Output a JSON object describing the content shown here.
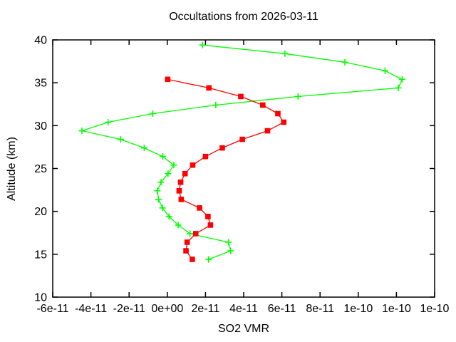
{
  "chart_data": {
    "type": "line",
    "title": "Occultations from 2026-03-11",
    "xlabel": "SO2 VMR",
    "ylabel": "Altitude (km)",
    "xlim": [
      -6e-11,
      1.4e-10
    ],
    "ylim": [
      10,
      40
    ],
    "grid": false,
    "legend": "none",
    "background_color": "#ffffff",
    "border_color": "#000000",
    "x_ticks": [
      -6e-11,
      -4e-11,
      -2e-11,
      0,
      2e-11,
      4e-11,
      6e-11,
      8e-11,
      1e-10,
      1.2e-10,
      1.4e-10
    ],
    "x_tick_labels": [
      "-6e-11",
      "-4e-11",
      "-2e-11",
      "0e+00",
      "2e-11",
      "4e-11",
      "6e-11",
      "8e-11",
      "1e-10",
      "1e-10",
      "1e-10"
    ],
    "y_ticks": [
      10,
      15,
      20,
      25,
      30,
      35,
      40
    ],
    "y_tick_labels": [
      "10",
      "15",
      "20",
      "25",
      "30",
      "35",
      "40"
    ],
    "series": [
      {
        "name": "occultation-green",
        "color": "#00ff00",
        "marker": "plus",
        "points_format": "[so2_vmr, altitude_km]",
        "points": [
          [
            1.84e-11,
            39.4
          ],
          [
            6.16e-11,
            38.4
          ],
          [
            9.3e-11,
            37.4
          ],
          [
            1.14e-10,
            36.4
          ],
          [
            1.23e-10,
            35.4
          ],
          [
            1.21e-10,
            34.4
          ],
          [
            6.85e-11,
            33.4
          ],
          [
            2.54e-11,
            32.4
          ],
          [
            -7.6e-12,
            31.4
          ],
          [
            -3.1e-11,
            30.4
          ],
          [
            -4.47e-11,
            29.4
          ],
          [
            -2.44e-11,
            28.4
          ],
          [
            -1.21e-11,
            27.4
          ],
          [
            -2.4e-12,
            26.4
          ],
          [
            3.4e-12,
            25.4
          ],
          [
            4e-13,
            24.4
          ],
          [
            -3.3e-12,
            23.4
          ],
          [
            -5.2e-12,
            22.4
          ],
          [
            -4.6e-12,
            21.4
          ],
          [
            -2.5e-12,
            20.4
          ],
          [
            9e-13,
            19.4
          ],
          [
            5.7e-12,
            18.4
          ],
          [
            1.19e-11,
            17.4
          ],
          [
            3.2e-11,
            16.4
          ],
          [
            3.32e-11,
            15.4
          ],
          [
            2.16e-11,
            14.4
          ]
        ]
      },
      {
        "name": "occultation-red",
        "color": "#ff0000",
        "marker": "square",
        "points_format": "[so2_vmr, altitude_km]",
        "points": [
          [
            2e-13,
            35.4
          ],
          [
            2.18e-11,
            34.4
          ],
          [
            3.85e-11,
            33.4
          ],
          [
            5e-11,
            32.4
          ],
          [
            5.79e-11,
            31.4
          ],
          [
            6.1e-11,
            30.4
          ],
          [
            5.25e-11,
            29.4
          ],
          [
            3.93e-11,
            28.4
          ],
          [
            2.88e-11,
            27.4
          ],
          [
            2e-11,
            26.4
          ],
          [
            1.33e-11,
            25.4
          ],
          [
            9.3e-12,
            24.4
          ],
          [
            7e-12,
            23.4
          ],
          [
            6.2e-12,
            22.4
          ],
          [
            7.3e-12,
            21.4
          ],
          [
            1.69e-11,
            20.4
          ],
          [
            2.13e-11,
            19.4
          ],
          [
            2.26e-11,
            18.4
          ],
          [
            1.49e-11,
            17.4
          ],
          [
            1.04e-11,
            16.4
          ],
          [
            9.8e-12,
            15.4
          ],
          [
            1.31e-11,
            14.4
          ]
        ]
      }
    ]
  }
}
